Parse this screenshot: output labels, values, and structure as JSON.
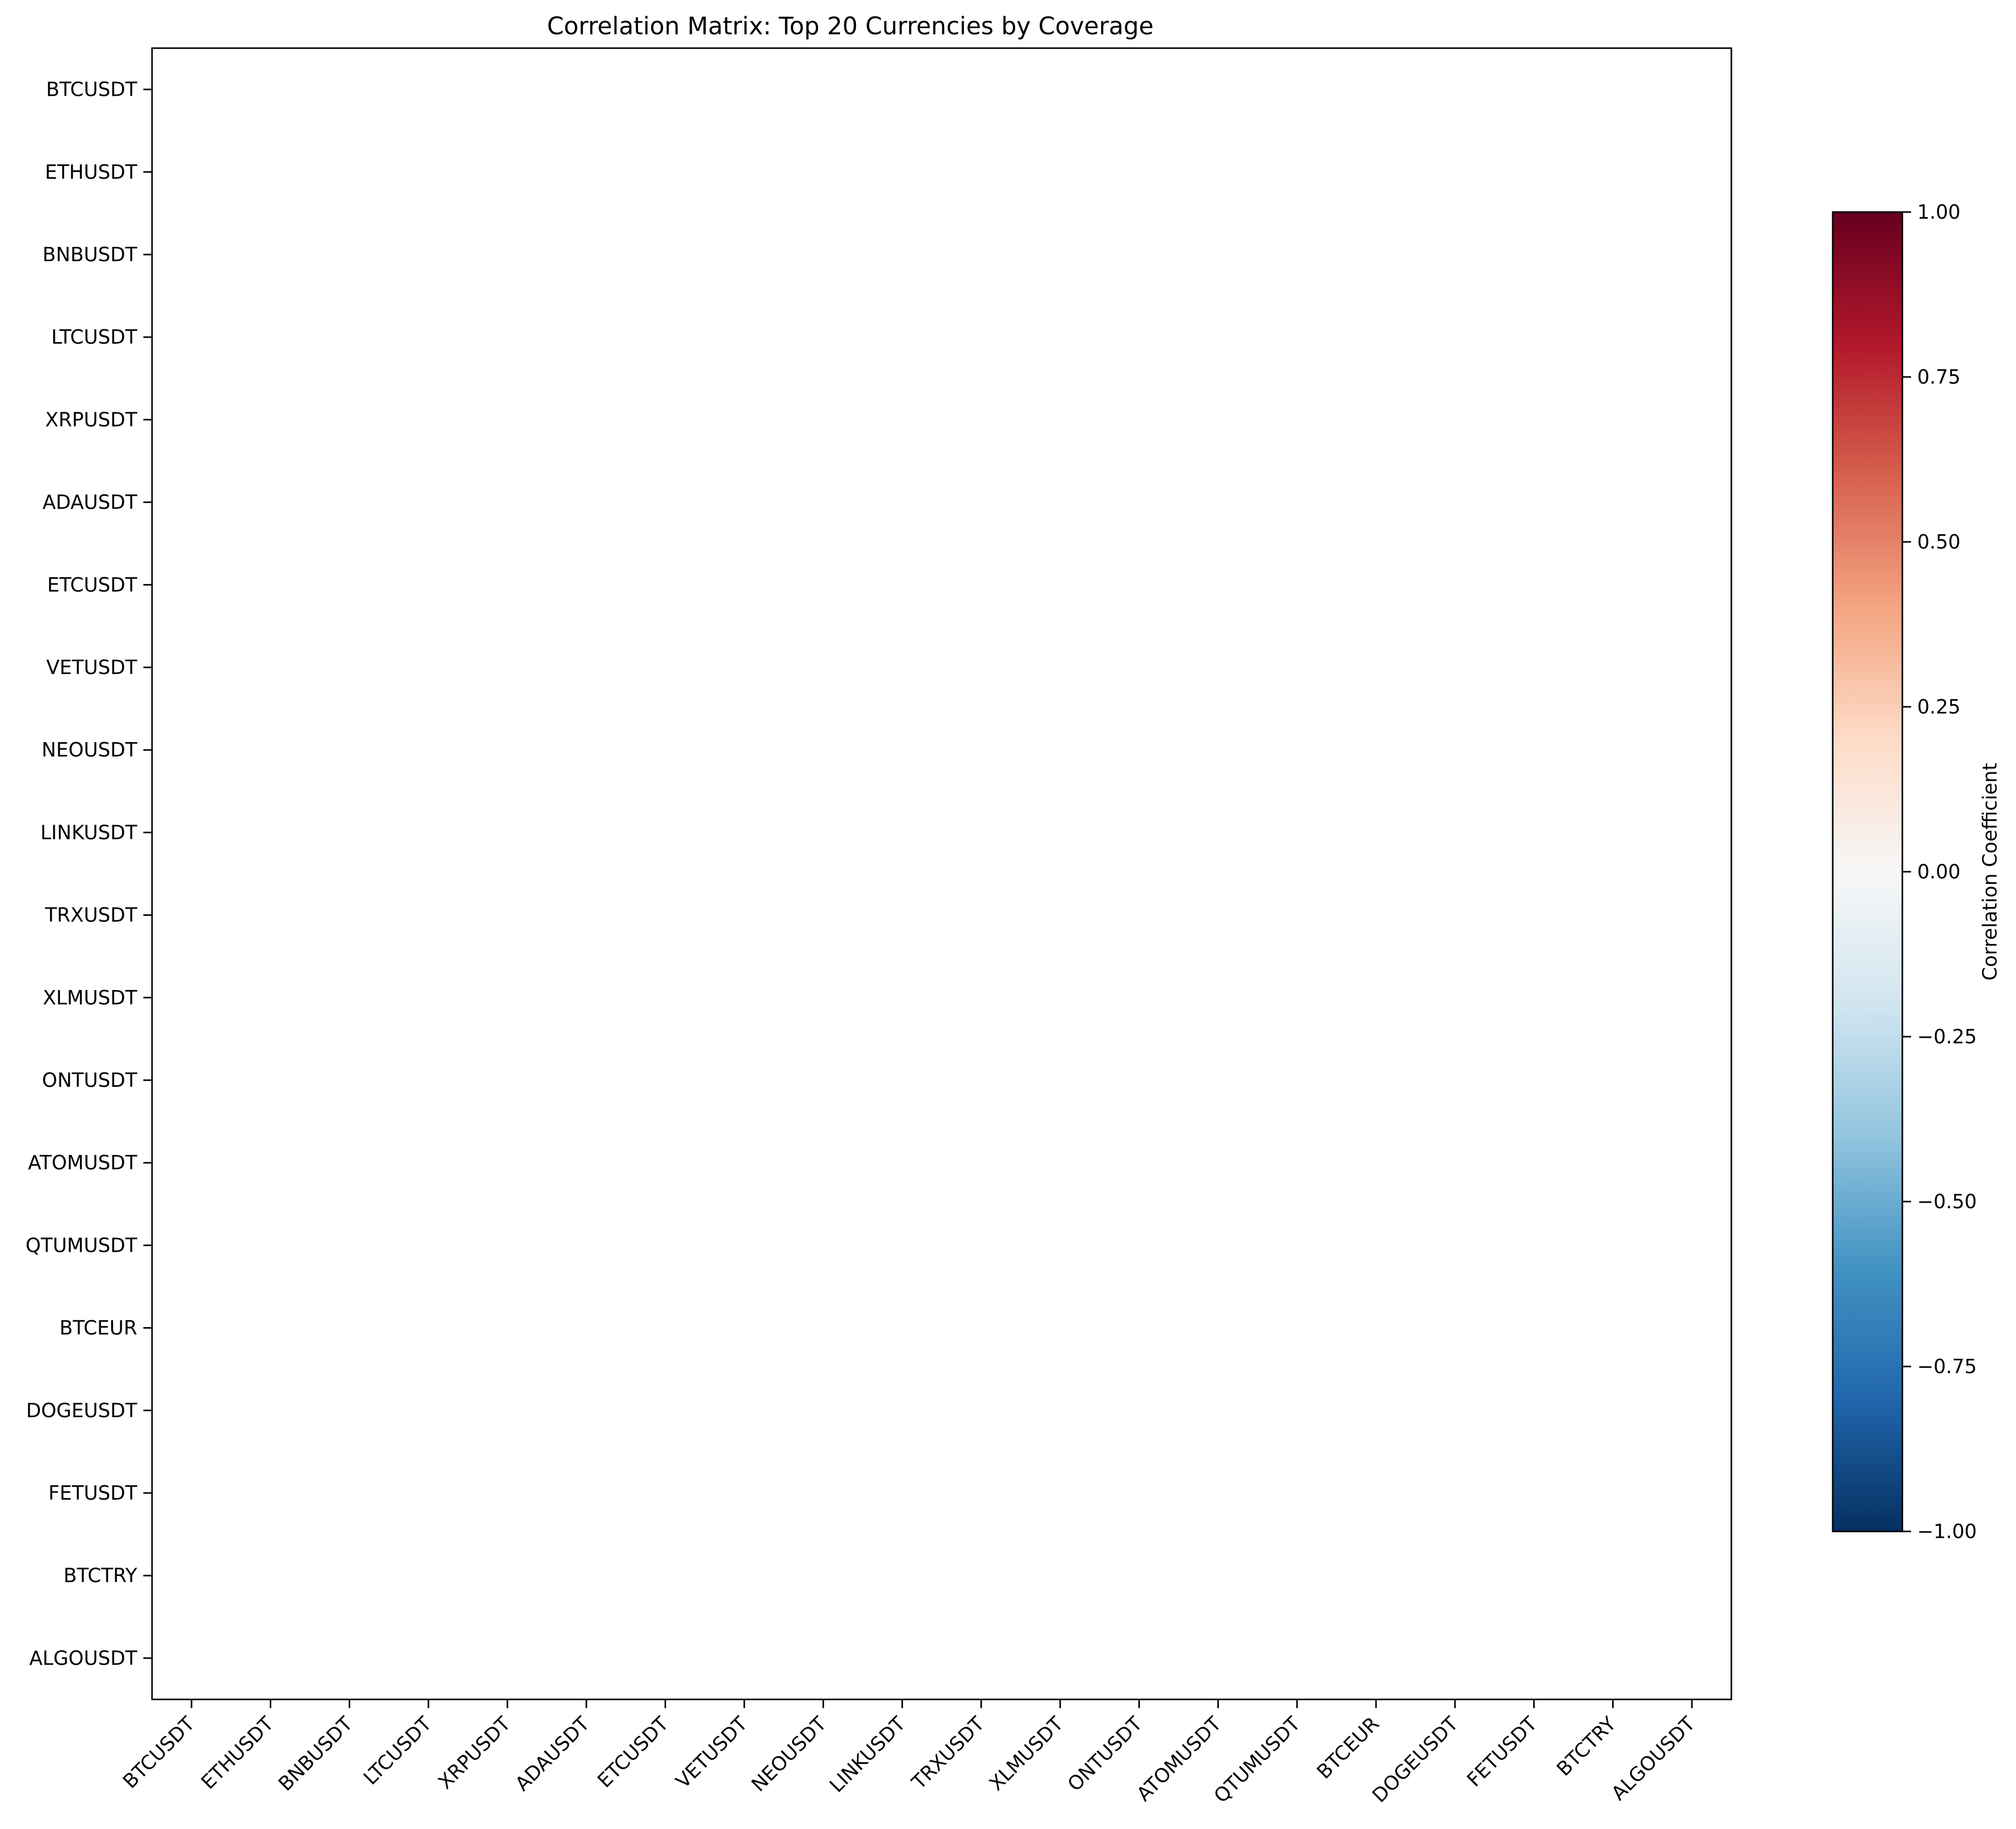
{
  "chart_data": {
    "type": "heatmap",
    "title": "Correlation Matrix: Top 20 Currencies by Coverage",
    "xlabel": "",
    "ylabel": "",
    "x_categories": [
      "BTCUSDT",
      "ETHUSDT",
      "BNBUSDT",
      "LTCUSDT",
      "XRPUSDT",
      "ADAUSDT",
      "ETCUSDT",
      "VETUSDT",
      "NEOUSDT",
      "LINKUSDT",
      "TRXUSDT",
      "XLMUSDT",
      "ONTUSDT",
      "ATOMUSDT",
      "QTUMUSDT",
      "BTCEUR",
      "DOGEUSDT",
      "FETUSDT",
      "BTCTRY",
      "ALGOUSDT"
    ],
    "y_categories": [
      "BTCUSDT",
      "ETHUSDT",
      "BNBUSDT",
      "LTCUSDT",
      "XRPUSDT",
      "ADAUSDT",
      "ETCUSDT",
      "VETUSDT",
      "NEOUSDT",
      "LINKUSDT",
      "TRXUSDT",
      "XLMUSDT",
      "ONTUSDT",
      "ATOMUSDT",
      "QTUMUSDT",
      "BTCEUR",
      "DOGEUSDT",
      "FETUSDT",
      "BTCTRY",
      "ALGOUSDT"
    ],
    "values": null,
    "colorbar": {
      "label": "Correlation Coefficient",
      "colormap": "RdBu_r",
      "range": [
        -1,
        1
      ],
      "ticks": [
        1.0,
        0.75,
        0.5,
        0.25,
        0.0,
        -0.25,
        -0.5,
        -0.75,
        -1.0
      ],
      "tick_labels": [
        "1.00",
        "0.75",
        "0.50",
        "0.25",
        "0.00",
        "−0.25",
        "−0.50",
        "−0.75",
        "−1.00"
      ],
      "colors": [
        "#67001f",
        "#b2182b",
        "#d6604d",
        "#f4a582",
        "#fddbc7",
        "#f7f7f7",
        "#d1e5f0",
        "#92c5de",
        "#4393c3",
        "#2166ac",
        "#053061"
      ]
    },
    "grid": false,
    "legend": "none"
  }
}
